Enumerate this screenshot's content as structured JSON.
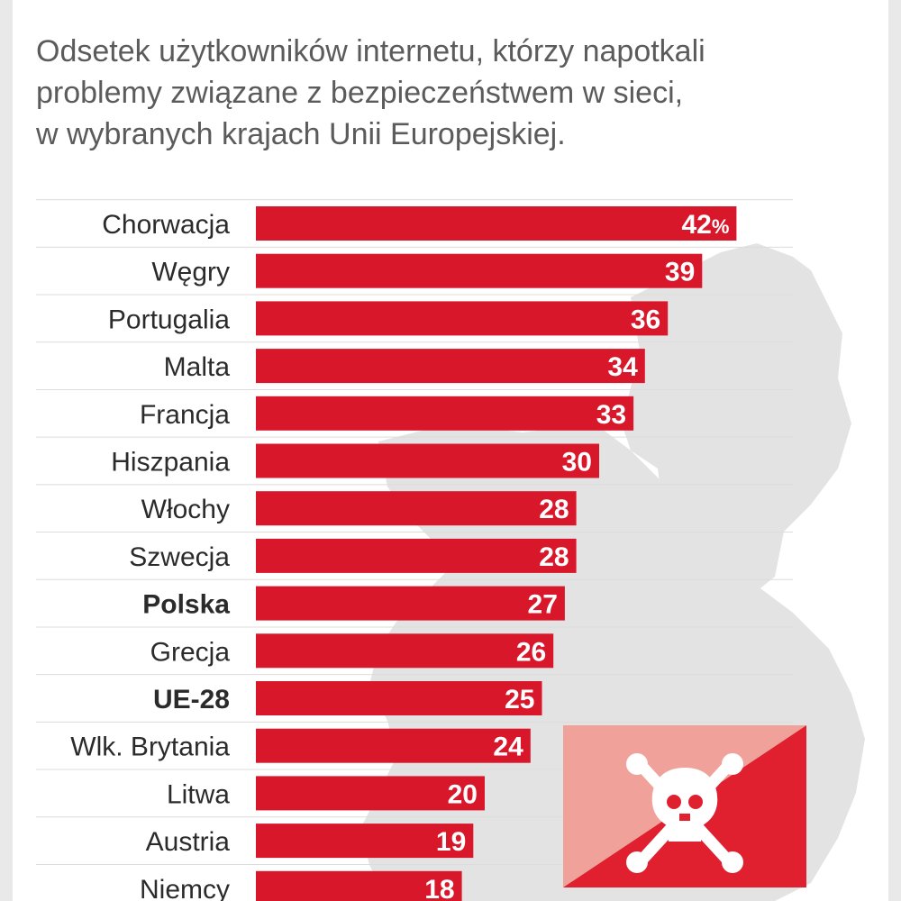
{
  "header": {
    "subtitle_lines": [
      "Odsetek użytkowników internetu, którzy napotkali",
      "problemy związane z bezpieczeństwem w sieci,",
      "w wybranych krajach Unii Europejskiej."
    ]
  },
  "colors": {
    "bar": "#d9172b",
    "map": "#e3e3e3",
    "grid": "#dcdcdc",
    "badge_light": "#f0a29a",
    "badge_dark": "#e0202f"
  },
  "icons": {
    "badge": "skull-crossbones-icon",
    "background": "europe-map"
  },
  "chart_data": {
    "type": "bar",
    "orientation": "horizontal",
    "categories": [
      "Chorwacja",
      "Węgry",
      "Portugalia",
      "Malta",
      "Francja",
      "Hiszpania",
      "Włochy",
      "Szwecja",
      "Polska",
      "Grecja",
      "UE-28",
      "Wlk. Brytania",
      "Litwa",
      "Austria",
      "Niemcy"
    ],
    "values": [
      42,
      39,
      36,
      34,
      33,
      30,
      28,
      28,
      27,
      26,
      25,
      24,
      20,
      19,
      18
    ],
    "value_labels": [
      "42%",
      "39",
      "36",
      "34",
      "33",
      "30",
      "28",
      "28",
      "27",
      "26",
      "25",
      "24",
      "20",
      "19",
      "18"
    ],
    "emphasized": [
      "Polska",
      "UE-28"
    ],
    "unit": "%",
    "grid": true
  }
}
